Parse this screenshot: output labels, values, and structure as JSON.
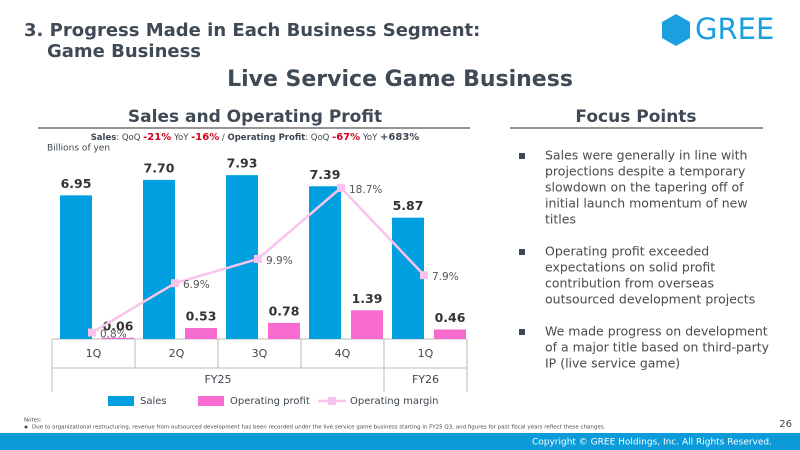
{
  "header": {
    "title_lines": [
      "3. Progress Made in Each Business Segment:",
      "Game Business"
    ],
    "logo": "GREE",
    "slide_title": "Live Service Game Business"
  },
  "chart_data": {
    "type": "bar",
    "title": "Sales and Operating Profit",
    "change_note": [
      "Sales",
      ": QoQ ",
      "-21%",
      " YoY ",
      "-16%",
      " / ",
      "Operating Profit",
      ": QoQ ",
      "-67%",
      " YoY ",
      "+683%"
    ],
    "y_label": "Billions of yen",
    "categories": [
      "1Q",
      "2Q",
      "3Q",
      "4Q",
      "1Q"
    ],
    "groups": [
      "FY25",
      "FY25",
      "FY25",
      "FY25",
      "FY26"
    ],
    "ylim": [
      0,
      9
    ],
    "y2lim": [
      0,
      23
    ],
    "series": [
      {
        "name": "Sales",
        "color": "#009fdf",
        "values": [
          6.95,
          7.7,
          7.93,
          7.39,
          5.87
        ],
        "value_labels": [
          "6.95",
          "7.70",
          "7.93",
          "7.39",
          "5.87"
        ]
      },
      {
        "name": "Operating profit",
        "color": "#f76bd0",
        "values": [
          0.06,
          0.53,
          0.78,
          1.39,
          0.46
        ],
        "value_labels": [
          "0.06",
          "0.53",
          "0.78",
          "1.39",
          "0.46"
        ]
      },
      {
        "name": "Operating margin",
        "type": "line",
        "axis": "y2",
        "color": "#f9c3ec",
        "values": [
          0.8,
          6.9,
          9.9,
          18.7,
          7.9
        ],
        "value_labels": [
          "0.8%",
          "6.9%",
          "9.9%",
          "18.7%",
          "7.9%"
        ]
      }
    ]
  },
  "focus": {
    "title": "Focus Points",
    "bullets": [
      [
        "Sales were generally in line with",
        "projections despite a temporary",
        "slowdown on the tapering off of",
        "initial launch momentum of new",
        "titles"
      ],
      [
        "Operating profit exceeded",
        "expectations on solid profit",
        "contribution from overseas",
        "outsourced development projects"
      ],
      [
        "We made progress on development",
        "of a major title based on third-party",
        "IP (live service game)"
      ]
    ]
  },
  "footer": {
    "notes_title": "Notes:",
    "note": "Due to organizational restructuring, revenue from outsourced development has been recorded under the live service game business starting in FY25 Q3, and figures for past fiscal years reflect these changes.",
    "page": "26",
    "copyright": "Copyright © GREE Holdings, Inc. All Rights Reserved."
  }
}
